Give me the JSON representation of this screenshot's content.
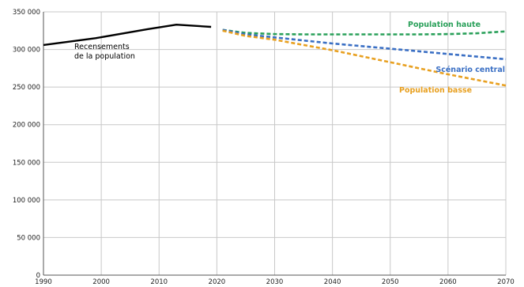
{
  "chart_data": {
    "type": "line",
    "xlim": [
      1990,
      2070
    ],
    "ylim": [
      0,
      350000
    ],
    "x_ticks": [
      1990,
      2000,
      2010,
      2020,
      2030,
      2040,
      2050,
      2060,
      2070
    ],
    "x_tick_labels": [
      "1990",
      "2000",
      "2010",
      "2020",
      "2030",
      "2040",
      "2050",
      "2060",
      "2070"
    ],
    "y_ticks": [
      0,
      50000,
      100000,
      150000,
      200000,
      250000,
      300000,
      350000
    ],
    "y_tick_labels": [
      "0",
      "50 000",
      "100 000",
      "150 000",
      "200 000",
      "250 000",
      "300 000",
      "350 000"
    ],
    "grid": true,
    "series": [
      {
        "name": "Recensements de la population",
        "label_lines": [
          "Recensements",
          "de la population"
        ],
        "color": "#000000",
        "style": "solid",
        "x": [
          1990,
          1999,
          2008,
          2013,
          2019
        ],
        "y": [
          306000,
          315000,
          327000,
          333000,
          330000
        ]
      },
      {
        "name": "Population haute",
        "color": "#2aa05a",
        "style": "dashed",
        "x": [
          2021,
          2025,
          2030,
          2035,
          2040,
          2045,
          2050,
          2055,
          2060,
          2065,
          2070
        ],
        "y": [
          326000,
          322000,
          320500,
          320000,
          320000,
          320000,
          320000,
          320000,
          320500,
          321500,
          324000
        ]
      },
      {
        "name": "Scénario central",
        "color": "#3a6fc4",
        "style": "dashed",
        "x": [
          2021,
          2025,
          2030,
          2035,
          2040,
          2045,
          2050,
          2055,
          2060,
          2065,
          2070
        ],
        "y": [
          326000,
          320000,
          316000,
          312000,
          308000,
          304500,
          301000,
          297500,
          294000,
          290500,
          287000
        ]
      },
      {
        "name": "Population basse",
        "color": "#e8a020",
        "style": "dashed",
        "x": [
          2021,
          2025,
          2030,
          2035,
          2040,
          2045,
          2050,
          2055,
          2060,
          2065,
          2070
        ],
        "y": [
          325000,
          318000,
          313000,
          306000,
          299000,
          291000,
          283000,
          275000,
          267000,
          259500,
          252000
        ]
      }
    ]
  }
}
